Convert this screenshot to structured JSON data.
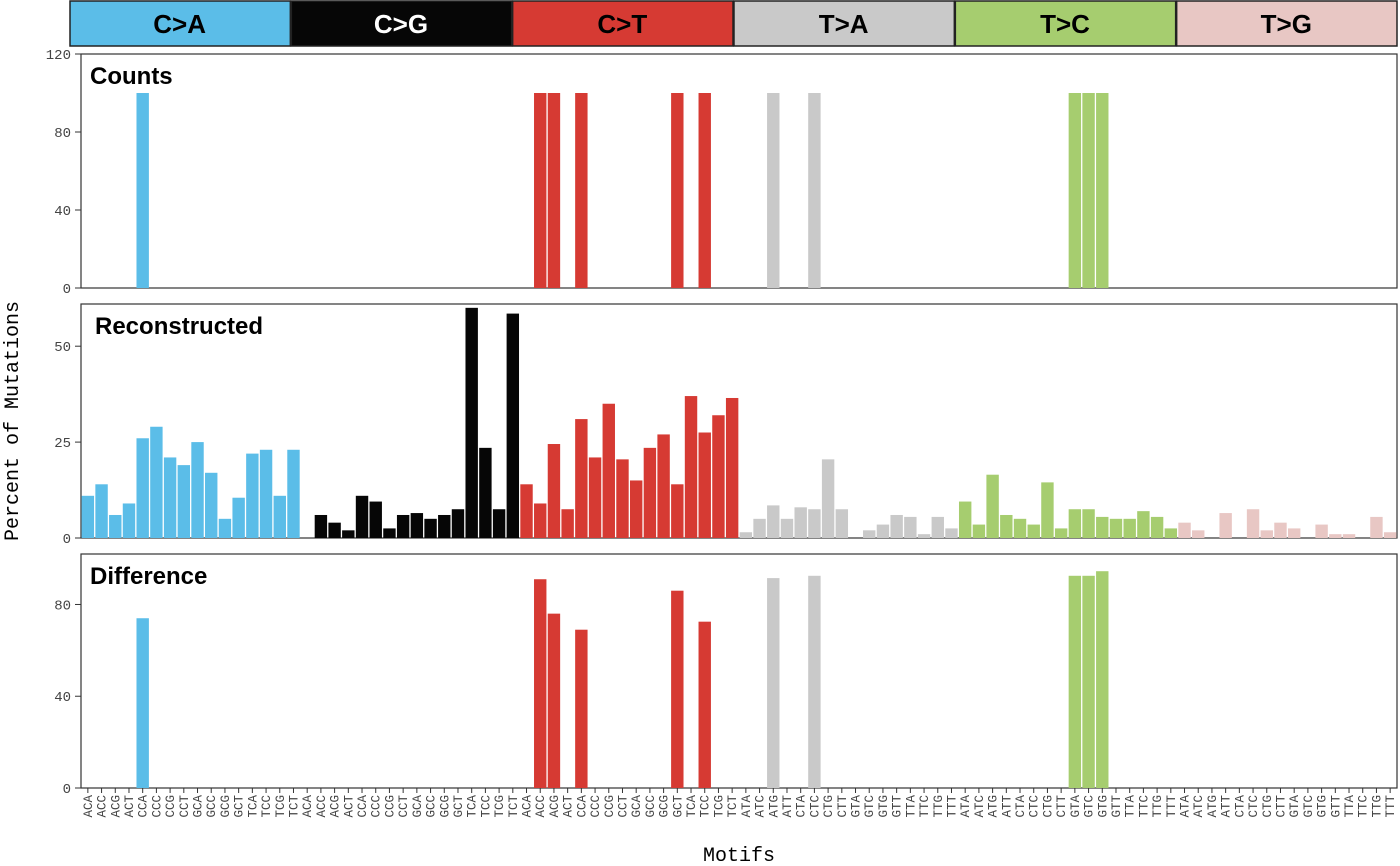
{
  "chart_data": {
    "type": "bar",
    "xlabel": "Motifs",
    "ylabel": "Percent of Mutations",
    "mutation_types": [
      {
        "label": "C>A",
        "color": "#5bbde8",
        "text_color": "#000000"
      },
      {
        "label": "C>G",
        "color": "#060606",
        "text_color": "#ffffff"
      },
      {
        "label": "C>T",
        "color": "#d63a33",
        "text_color": "#000000"
      },
      {
        "label": "T>A",
        "color": "#c9c9c9",
        "text_color": "#000000"
      },
      {
        "label": "T>C",
        "color": "#a6cd6f",
        "text_color": "#000000"
      },
      {
        "label": "T>G",
        "color": "#e8c7c4",
        "text_color": "#000000"
      }
    ],
    "categories": [
      "ACA",
      "ACC",
      "ACG",
      "ACT",
      "CCA",
      "CCC",
      "CCG",
      "CCT",
      "GCA",
      "GCC",
      "GCG",
      "GCT",
      "TCA",
      "TCC",
      "TCG",
      "TCT",
      "ACA",
      "ACC",
      "ACG",
      "ACT",
      "CCA",
      "CCC",
      "CCG",
      "CCT",
      "GCA",
      "GCC",
      "GCG",
      "GCT",
      "TCA",
      "TCC",
      "TCG",
      "TCT",
      "ACA",
      "ACC",
      "ACG",
      "ACT",
      "CCA",
      "CCC",
      "CCG",
      "CCT",
      "GCA",
      "GCC",
      "GCG",
      "GCT",
      "TCA",
      "TCC",
      "TCG",
      "TCT",
      "ATA",
      "ATC",
      "ATG",
      "ATT",
      "CTA",
      "CTC",
      "CTG",
      "CTT",
      "GTA",
      "GTC",
      "GTG",
      "GTT",
      "TTA",
      "TTC",
      "TTG",
      "TTT",
      "ATA",
      "ATC",
      "ATG",
      "ATT",
      "CTA",
      "CTC",
      "CTG",
      "CTT",
      "GTA",
      "GTC",
      "GTG",
      "GTT",
      "TTA",
      "TTC",
      "TTG",
      "TTT",
      "ATA",
      "ATC",
      "ATG",
      "ATT",
      "CTA",
      "CTC",
      "CTG",
      "CTT",
      "GTA",
      "GTC",
      "GTG",
      "GTT",
      "TTA",
      "TTC",
      "TTG",
      "TTT"
    ],
    "panels": [
      {
        "title": "Counts",
        "ylim": [
          0,
          120
        ],
        "yticks": [
          0,
          40,
          80,
          120
        ],
        "values": [
          0,
          0,
          0,
          0,
          100,
          0,
          0,
          0,
          0,
          0,
          0,
          0,
          0,
          0,
          0,
          0,
          0,
          0,
          0,
          0,
          0,
          0,
          0,
          0,
          0,
          0,
          0,
          0,
          0,
          0,
          0,
          0,
          0,
          100,
          100,
          0,
          100,
          0,
          0,
          0,
          0,
          0,
          0,
          100,
          0,
          100,
          0,
          0,
          0,
          0,
          100,
          0,
          0,
          100,
          0,
          0,
          0,
          0,
          0,
          0,
          0,
          0,
          0,
          0,
          0,
          0,
          0,
          0,
          0,
          0,
          0,
          0,
          100,
          100,
          100,
          0,
          0,
          0,
          0,
          0,
          0,
          0,
          0,
          0,
          0,
          0,
          0,
          0,
          0,
          0,
          0,
          0,
          0,
          0,
          0,
          0
        ]
      },
      {
        "title": "Reconstructed",
        "ylim": [
          0,
          61
        ],
        "yticks": [
          0,
          25,
          50
        ],
        "values": [
          11,
          14,
          6,
          9,
          26,
          29,
          21,
          19,
          25,
          17,
          5,
          10.5,
          22,
          23,
          11,
          23,
          0,
          6,
          4,
          2,
          11,
          9.5,
          2.5,
          6,
          6.5,
          5,
          6,
          7.5,
          60,
          23.5,
          7.5,
          58.5,
          14,
          9,
          24.5,
          7.5,
          31,
          21,
          35,
          20.5,
          15,
          23.5,
          27,
          14,
          37,
          27.5,
          32,
          36.5,
          1.5,
          5,
          8.5,
          5,
          8,
          7.5,
          20.5,
          7.5,
          0,
          2,
          3.5,
          6,
          5.5,
          1,
          5.5,
          2.5,
          9.5,
          3.5,
          16.5,
          6,
          5,
          3.5,
          14.5,
          2.5,
          7.5,
          7.5,
          5.5,
          5,
          5,
          7,
          5.5,
          2.5,
          4,
          2,
          0,
          6.5,
          0,
          7.5,
          2,
          4,
          2.5,
          0,
          3.5,
          1,
          1,
          0,
          5.5,
          1.5
        ]
      },
      {
        "title": "Difference",
        "ylim": [
          0,
          102
        ],
        "yticks": [
          0,
          40,
          80
        ],
        "values": [
          0,
          0,
          0,
          0,
          74,
          0,
          0,
          0,
          0,
          0,
          0,
          0,
          0,
          0,
          0,
          0,
          0,
          0,
          0,
          0,
          0,
          0,
          0,
          0,
          0,
          0,
          0,
          0,
          0,
          0,
          0,
          0,
          0,
          91,
          76,
          0,
          69,
          0,
          0,
          0,
          0,
          0,
          0,
          86,
          0,
          72.5,
          0,
          0,
          0,
          0,
          91.5,
          0,
          0,
          92.5,
          0,
          0,
          0,
          0,
          0,
          0,
          0,
          0,
          0,
          0,
          0,
          0,
          0,
          0,
          0,
          0,
          0,
          0,
          92.5,
          92.5,
          94.5,
          0,
          0,
          0,
          0,
          0,
          0,
          0,
          0,
          0,
          0,
          0,
          0,
          0,
          0,
          0,
          0,
          0,
          0,
          0,
          0,
          0
        ]
      }
    ]
  }
}
